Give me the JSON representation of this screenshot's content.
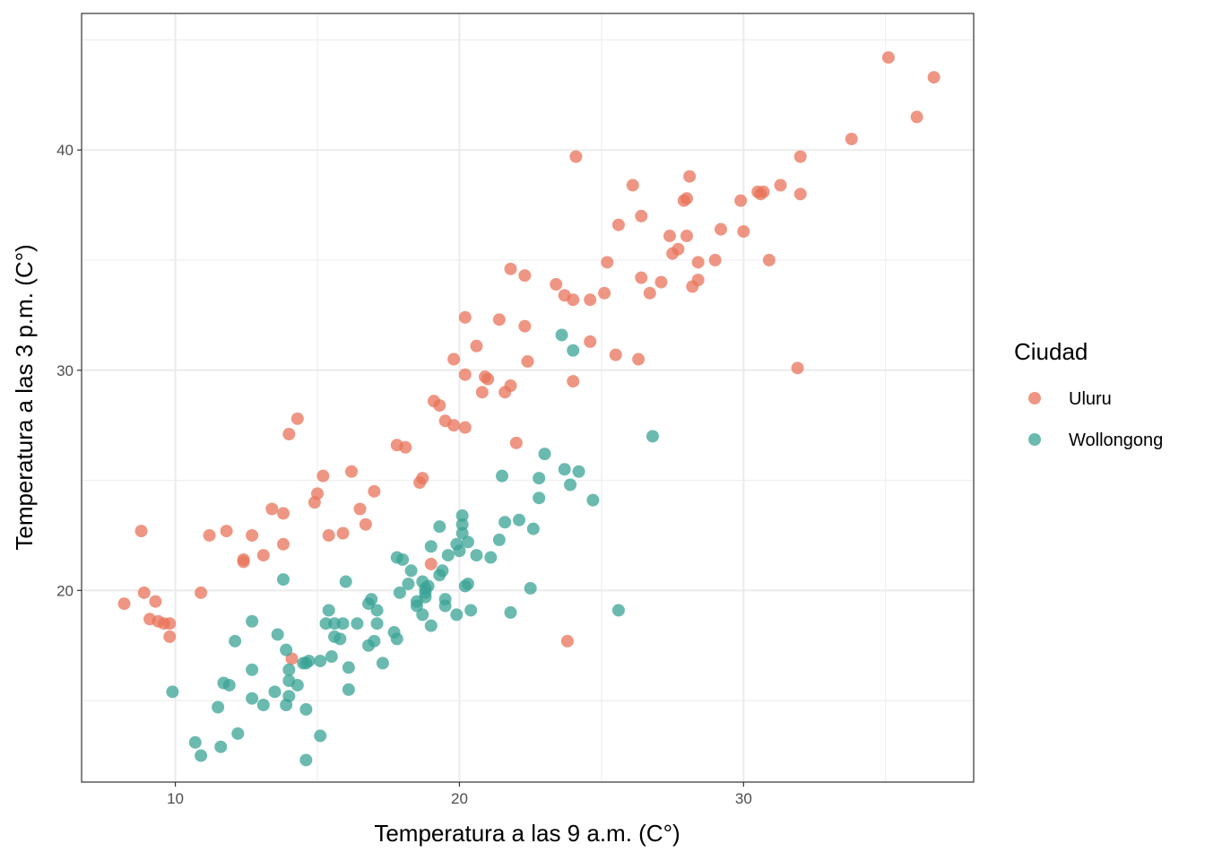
{
  "chart_data": {
    "type": "scatter",
    "xlabel": "Temperatura a las 9 a.m. (C°)",
    "ylabel": "Temperatura a las 3 p.m. (C°)",
    "xlim": [
      6.7,
      38.1
    ],
    "ylim": [
      11.3,
      46.2
    ],
    "x_ticks": [
      10,
      20,
      30
    ],
    "y_ticks": [
      20,
      30,
      40
    ],
    "x_tick_labels": [
      "10",
      "20",
      "30"
    ],
    "y_tick_labels": [
      "20",
      "30",
      "40"
    ],
    "grid": true,
    "legend": {
      "title": "Ciudad",
      "position": "right"
    },
    "series": [
      {
        "name": "Uluru",
        "color": "#E8735A",
        "points": [
          [
            8.2,
            19.4
          ],
          [
            8.8,
            22.7
          ],
          [
            8.9,
            19.9
          ],
          [
            9.1,
            18.7
          ],
          [
            9.3,
            19.5
          ],
          [
            9.4,
            18.6
          ],
          [
            9.6,
            18.5
          ],
          [
            9.8,
            18.5
          ],
          [
            9.8,
            17.9
          ],
          [
            10.9,
            19.9
          ],
          [
            11.2,
            22.5
          ],
          [
            11.8,
            22.7
          ],
          [
            12.4,
            21.4
          ],
          [
            12.4,
            21.3
          ],
          [
            12.7,
            22.5
          ],
          [
            13.1,
            21.6
          ],
          [
            13.4,
            23.7
          ],
          [
            13.8,
            23.5
          ],
          [
            13.8,
            22.1
          ],
          [
            14.0,
            27.1
          ],
          [
            14.1,
            16.9
          ],
          [
            14.3,
            27.8
          ],
          [
            14.9,
            24.0
          ],
          [
            15.0,
            24.4
          ],
          [
            15.2,
            25.2
          ],
          [
            15.4,
            22.5
          ],
          [
            15.9,
            22.6
          ],
          [
            16.2,
            25.4
          ],
          [
            16.5,
            23.7
          ],
          [
            16.7,
            23.0
          ],
          [
            17.0,
            24.5
          ],
          [
            17.8,
            26.6
          ],
          [
            18.1,
            26.5
          ],
          [
            18.6,
            24.9
          ],
          [
            18.7,
            25.1
          ],
          [
            19.0,
            21.2
          ],
          [
            19.1,
            28.6
          ],
          [
            19.3,
            28.4
          ],
          [
            19.5,
            27.7
          ],
          [
            19.8,
            30.5
          ],
          [
            19.8,
            27.5
          ],
          [
            20.2,
            32.4
          ],
          [
            20.2,
            29.8
          ],
          [
            20.2,
            27.4
          ],
          [
            20.6,
            31.1
          ],
          [
            20.8,
            29.0
          ],
          [
            20.9,
            29.7
          ],
          [
            21.0,
            29.6
          ],
          [
            21.4,
            32.3
          ],
          [
            21.6,
            29.0
          ],
          [
            21.8,
            29.3
          ],
          [
            21.8,
            34.6
          ],
          [
            22.0,
            26.7
          ],
          [
            22.3,
            32.0
          ],
          [
            22.3,
            34.3
          ],
          [
            22.4,
            30.4
          ],
          [
            23.4,
            33.9
          ],
          [
            23.7,
            33.4
          ],
          [
            23.8,
            17.7
          ],
          [
            24.0,
            33.2
          ],
          [
            24.0,
            29.5
          ],
          [
            24.1,
            39.7
          ],
          [
            24.6,
            31.3
          ],
          [
            24.6,
            33.2
          ],
          [
            25.1,
            33.5
          ],
          [
            25.2,
            34.9
          ],
          [
            25.5,
            30.7
          ],
          [
            25.6,
            36.6
          ],
          [
            26.1,
            38.4
          ],
          [
            26.3,
            30.5
          ],
          [
            26.4,
            34.2
          ],
          [
            26.4,
            37.0
          ],
          [
            26.7,
            33.5
          ],
          [
            27.1,
            34.0
          ],
          [
            27.4,
            36.1
          ],
          [
            27.5,
            35.3
          ],
          [
            27.7,
            35.5
          ],
          [
            27.9,
            37.7
          ],
          [
            28.0,
            37.8
          ],
          [
            28.0,
            36.1
          ],
          [
            28.1,
            38.8
          ],
          [
            28.2,
            33.8
          ],
          [
            28.4,
            34.1
          ],
          [
            28.4,
            34.9
          ],
          [
            29.0,
            35.0
          ],
          [
            29.2,
            36.4
          ],
          [
            29.9,
            37.7
          ],
          [
            30.0,
            36.3
          ],
          [
            30.5,
            38.1
          ],
          [
            30.6,
            38.0
          ],
          [
            30.7,
            38.1
          ],
          [
            30.9,
            35.0
          ],
          [
            31.3,
            38.4
          ],
          [
            31.9,
            30.1
          ],
          [
            32.0,
            39.7
          ],
          [
            32.0,
            38.0
          ],
          [
            33.8,
            40.5
          ],
          [
            35.1,
            44.2
          ],
          [
            36.1,
            41.5
          ],
          [
            36.7,
            43.3
          ]
        ]
      },
      {
        "name": "Wollongong",
        "color": "#3AA396",
        "points": [
          [
            9.9,
            15.4
          ],
          [
            10.7,
            13.1
          ],
          [
            10.9,
            12.5
          ],
          [
            11.5,
            14.7
          ],
          [
            11.6,
            12.9
          ],
          [
            11.7,
            15.8
          ],
          [
            11.9,
            15.7
          ],
          [
            12.1,
            17.7
          ],
          [
            12.2,
            13.5
          ],
          [
            12.7,
            18.6
          ],
          [
            12.7,
            16.4
          ],
          [
            12.7,
            15.1
          ],
          [
            13.1,
            14.8
          ],
          [
            13.5,
            15.4
          ],
          [
            13.6,
            18.0
          ],
          [
            13.8,
            20.5
          ],
          [
            13.9,
            17.3
          ],
          [
            13.9,
            14.8
          ],
          [
            14.0,
            16.4
          ],
          [
            14.0,
            15.9
          ],
          [
            14.0,
            15.2
          ],
          [
            14.3,
            15.7
          ],
          [
            14.5,
            16.7
          ],
          [
            14.6,
            16.7
          ],
          [
            14.6,
            14.6
          ],
          [
            14.6,
            12.3
          ],
          [
            14.7,
            16.8
          ],
          [
            15.1,
            16.8
          ],
          [
            15.1,
            13.4
          ],
          [
            15.3,
            18.5
          ],
          [
            15.4,
            19.1
          ],
          [
            15.5,
            17.0
          ],
          [
            15.6,
            18.5
          ],
          [
            15.6,
            17.9
          ],
          [
            15.8,
            17.8
          ],
          [
            15.9,
            18.5
          ],
          [
            16.0,
            20.4
          ],
          [
            16.1,
            16.5
          ],
          [
            16.1,
            15.5
          ],
          [
            16.4,
            18.5
          ],
          [
            16.8,
            19.4
          ],
          [
            16.8,
            17.5
          ],
          [
            16.9,
            19.6
          ],
          [
            17.0,
            17.7
          ],
          [
            17.1,
            19.1
          ],
          [
            17.1,
            18.5
          ],
          [
            17.3,
            16.7
          ],
          [
            17.7,
            18.1
          ],
          [
            17.8,
            21.5
          ],
          [
            17.8,
            17.8
          ],
          [
            17.9,
            19.9
          ],
          [
            18.0,
            21.4
          ],
          [
            18.2,
            20.3
          ],
          [
            18.3,
            20.9
          ],
          [
            18.5,
            19.5
          ],
          [
            18.5,
            19.3
          ],
          [
            18.7,
            20.4
          ],
          [
            18.7,
            18.9
          ],
          [
            18.8,
            20.1
          ],
          [
            18.8,
            19.9
          ],
          [
            18.8,
            19.7
          ],
          [
            18.9,
            20.2
          ],
          [
            19.0,
            22.0
          ],
          [
            19.0,
            18.4
          ],
          [
            19.3,
            22.9
          ],
          [
            19.3,
            20.7
          ],
          [
            19.4,
            20.9
          ],
          [
            19.5,
            19.6
          ],
          [
            19.5,
            19.3
          ],
          [
            19.6,
            21.6
          ],
          [
            19.9,
            22.1
          ],
          [
            19.9,
            18.9
          ],
          [
            20.0,
            21.8
          ],
          [
            20.1,
            23.4
          ],
          [
            20.1,
            23.0
          ],
          [
            20.1,
            22.6
          ],
          [
            20.2,
            20.2
          ],
          [
            20.3,
            22.2
          ],
          [
            20.3,
            20.3
          ],
          [
            20.4,
            19.1
          ],
          [
            20.6,
            21.6
          ],
          [
            21.1,
            21.5
          ],
          [
            21.4,
            22.3
          ],
          [
            21.5,
            25.2
          ],
          [
            21.6,
            23.1
          ],
          [
            21.8,
            19.0
          ],
          [
            22.1,
            23.2
          ],
          [
            22.5,
            20.1
          ],
          [
            22.6,
            22.8
          ],
          [
            22.8,
            25.1
          ],
          [
            22.8,
            24.2
          ],
          [
            23.0,
            26.2
          ],
          [
            23.6,
            31.6
          ],
          [
            23.7,
            25.5
          ],
          [
            23.9,
            24.8
          ],
          [
            24.0,
            30.9
          ],
          [
            24.2,
            25.4
          ],
          [
            24.7,
            24.1
          ],
          [
            25.6,
            19.1
          ],
          [
            26.8,
            27.0
          ]
        ]
      }
    ]
  }
}
